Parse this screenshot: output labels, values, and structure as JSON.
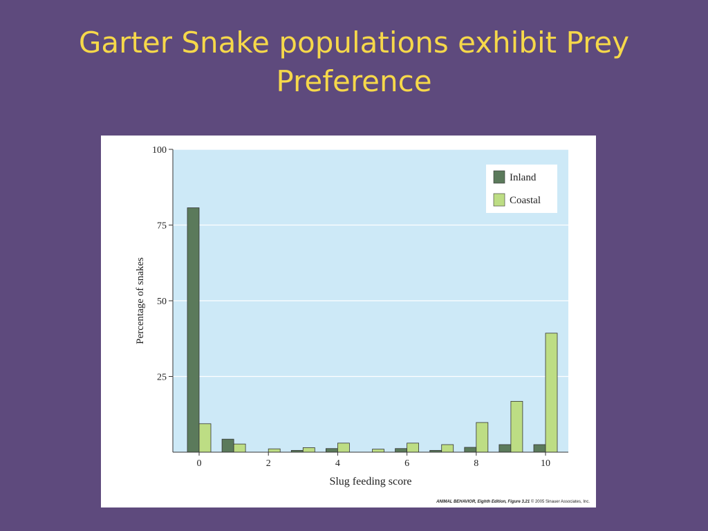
{
  "slide": {
    "title_lines": [
      "Garter Snake populations exhibit Prey",
      "Preference"
    ]
  },
  "colors": {
    "background": "#5e4a7d",
    "title": "#f6d84a",
    "plot_area": "#cde9f7",
    "inland": "#5b7a5b",
    "coastal": "#bddd84"
  },
  "figure": {
    "credit_bold": "ANIMAL BEHAVIOR, Eighth Edition, Figure 3.21",
    "credit_rest": "© 2005 Sinauer Associates, Inc."
  },
  "chart_data": {
    "type": "bar",
    "title": "",
    "xlabel": "Slug feeding score",
    "ylabel": "Percentage of snakes",
    "categories": [
      0,
      1,
      2,
      3,
      4,
      5,
      6,
      7,
      8,
      9,
      10
    ],
    "x_tick_labels": [
      "0",
      "2",
      "4",
      "6",
      "8",
      "10"
    ],
    "y_ticks": [
      25,
      50,
      75,
      100
    ],
    "ylim": [
      0,
      100
    ],
    "grid": true,
    "legend_position": "top-right",
    "series": [
      {
        "name": "Inland",
        "values": [
          80.7,
          4.3,
          0,
          0.6,
          1.2,
          0,
          1.2,
          0.6,
          1.6,
          2.5,
          2.5
        ]
      },
      {
        "name": "Coastal",
        "values": [
          9.4,
          2.7,
          1.1,
          1.5,
          3.0,
          1.0,
          3.0,
          2.5,
          9.8,
          16.8,
          39.3
        ]
      }
    ]
  }
}
